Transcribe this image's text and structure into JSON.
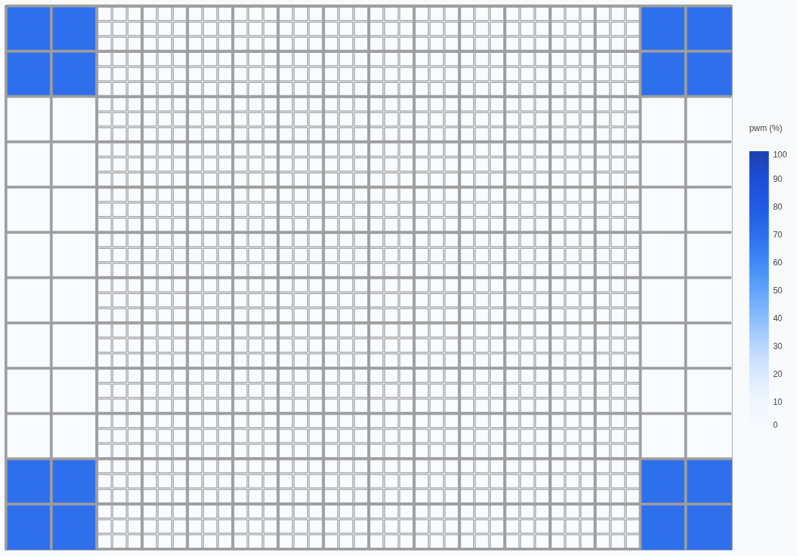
{
  "chart_data": {
    "type": "heatmap",
    "categories": [
      null,
      null,
      null,
      null,
      null,
      null,
      null,
      null,
      null,
      null,
      null,
      null,
      null,
      null,
      null,
      null,
      null,
      null,
      null,
      null,
      null,
      null,
      null,
      null,
      null,
      null,
      null,
      null,
      null,
      null,
      null,
      null,
      null,
      null,
      null,
      null,
      null,
      null,
      null,
      null,
      null,
      null,
      null,
      null,
      null,
      null,
      null,
      null
    ],
    "y_categories": [
      null,
      null,
      null,
      null,
      null,
      null,
      null,
      null,
      null,
      null,
      null,
      null,
      null,
      null,
      null,
      null,
      null,
      null,
      null,
      null,
      null,
      null,
      null,
      null,
      null,
      null,
      null,
      null,
      null,
      null,
      null,
      null,
      null,
      null,
      null,
      null
    ],
    "cells": [
      [
        70,
        70,
        70,
        70,
        70,
        70,
        0,
        0,
        0,
        0,
        0,
        0,
        0,
        0,
        0,
        0,
        0,
        0,
        0,
        0,
        0,
        0,
        0,
        0,
        0,
        0,
        0,
        0,
        0,
        0,
        0,
        0,
        0,
        0,
        0,
        0,
        0,
        0,
        0,
        0,
        0,
        0,
        70,
        70,
        70,
        70,
        70,
        70
      ],
      [
        70,
        70,
        70,
        70,
        70,
        70,
        0,
        0,
        0,
        0,
        0,
        0,
        0,
        0,
        0,
        0,
        0,
        0,
        0,
        0,
        0,
        0,
        0,
        0,
        0,
        0,
        0,
        0,
        0,
        0,
        0,
        0,
        0,
        0,
        0,
        0,
        0,
        0,
        0,
        0,
        0,
        0,
        70,
        70,
        70,
        70,
        70,
        70
      ],
      [
        70,
        70,
        70,
        70,
        70,
        70,
        0,
        0,
        0,
        0,
        0,
        0,
        0,
        0,
        0,
        0,
        0,
        0,
        0,
        0,
        0,
        0,
        0,
        0,
        0,
        0,
        0,
        0,
        0,
        0,
        0,
        0,
        0,
        0,
        0,
        0,
        0,
        0,
        0,
        0,
        0,
        0,
        70,
        70,
        70,
        70,
        70,
        70
      ],
      [
        70,
        70,
        70,
        70,
        70,
        70,
        0,
        0,
        0,
        0,
        0,
        0,
        0,
        0,
        0,
        0,
        0,
        0,
        0,
        0,
        0,
        0,
        0,
        0,
        0,
        0,
        0,
        0,
        0,
        0,
        0,
        0,
        0,
        0,
        0,
        0,
        0,
        0,
        0,
        0,
        0,
        0,
        70,
        70,
        70,
        70,
        70,
        70
      ],
      [
        70,
        70,
        70,
        70,
        70,
        70,
        0,
        0,
        0,
        0,
        0,
        0,
        0,
        0,
        0,
        0,
        0,
        0,
        0,
        0,
        0,
        0,
        0,
        0,
        0,
        0,
        0,
        0,
        0,
        0,
        0,
        0,
        0,
        0,
        0,
        0,
        0,
        0,
        0,
        0,
        0,
        0,
        70,
        70,
        70,
        70,
        70,
        70
      ],
      [
        70,
        70,
        70,
        70,
        70,
        70,
        0,
        0,
        0,
        0,
        0,
        0,
        0,
        0,
        0,
        0,
        0,
        0,
        0,
        0,
        0,
        0,
        0,
        0,
        0,
        0,
        0,
        0,
        0,
        0,
        0,
        0,
        0,
        0,
        0,
        0,
        0,
        0,
        0,
        0,
        0,
        0,
        70,
        70,
        70,
        70,
        70,
        70
      ],
      [
        0,
        0,
        0,
        0,
        0,
        0,
        0,
        0,
        0,
        0,
        0,
        0,
        0,
        0,
        0,
        0,
        0,
        0,
        0,
        0,
        0,
        0,
        0,
        0,
        0,
        0,
        0,
        0,
        0,
        0,
        0,
        0,
        0,
        0,
        0,
        0,
        0,
        0,
        0,
        0,
        0,
        0,
        0,
        0,
        0,
        0,
        0,
        0
      ],
      [
        0,
        0,
        0,
        0,
        0,
        0,
        0,
        0,
        0,
        0,
        0,
        0,
        0,
        0,
        0,
        0,
        0,
        0,
        0,
        0,
        0,
        0,
        0,
        0,
        0,
        0,
        0,
        0,
        0,
        0,
        0,
        0,
        0,
        0,
        0,
        0,
        0,
        0,
        0,
        0,
        0,
        0,
        0,
        0,
        0,
        0,
        0,
        0
      ],
      [
        0,
        0,
        0,
        0,
        0,
        0,
        0,
        0,
        0,
        0,
        0,
        0,
        0,
        0,
        0,
        0,
        0,
        0,
        0,
        0,
        0,
        0,
        0,
        0,
        0,
        0,
        0,
        0,
        0,
        0,
        0,
        0,
        0,
        0,
        0,
        0,
        0,
        0,
        0,
        0,
        0,
        0,
        0,
        0,
        0,
        0,
        0,
        0
      ],
      [
        0,
        0,
        0,
        0,
        0,
        0,
        0,
        0,
        0,
        0,
        0,
        0,
        0,
        0,
        0,
        0,
        0,
        0,
        0,
        0,
        0,
        0,
        0,
        0,
        0,
        0,
        0,
        0,
        0,
        0,
        0,
        0,
        0,
        0,
        0,
        0,
        0,
        0,
        0,
        0,
        0,
        0,
        0,
        0,
        0,
        0,
        0,
        0
      ],
      [
        0,
        0,
        0,
        0,
        0,
        0,
        0,
        0,
        0,
        0,
        0,
        0,
        0,
        0,
        0,
        0,
        0,
        0,
        0,
        0,
        0,
        0,
        0,
        0,
        0,
        0,
        0,
        0,
        0,
        0,
        0,
        0,
        0,
        0,
        0,
        0,
        0,
        0,
        0,
        0,
        0,
        0,
        0,
        0,
        0,
        0,
        0,
        0
      ],
      [
        0,
        0,
        0,
        0,
        0,
        0,
        0,
        0,
        0,
        0,
        0,
        0,
        0,
        0,
        0,
        0,
        0,
        0,
        0,
        0,
        0,
        0,
        0,
        0,
        0,
        0,
        0,
        0,
        0,
        0,
        0,
        0,
        0,
        0,
        0,
        0,
        0,
        0,
        0,
        0,
        0,
        0,
        0,
        0,
        0,
        0,
        0,
        0
      ],
      [
        0,
        0,
        0,
        0,
        0,
        0,
        0,
        0,
        0,
        0,
        0,
        0,
        0,
        0,
        0,
        0,
        0,
        0,
        0,
        0,
        0,
        0,
        0,
        0,
        0,
        0,
        0,
        0,
        0,
        0,
        0,
        0,
        0,
        0,
        0,
        0,
        0,
        0,
        0,
        0,
        0,
        0,
        0,
        0,
        0,
        0,
        0,
        0
      ],
      [
        0,
        0,
        0,
        0,
        0,
        0,
        0,
        0,
        0,
        0,
        0,
        0,
        0,
        0,
        0,
        0,
        0,
        0,
        0,
        0,
        0,
        0,
        0,
        0,
        0,
        0,
        0,
        0,
        0,
        0,
        0,
        0,
        0,
        0,
        0,
        0,
        0,
        0,
        0,
        0,
        0,
        0,
        0,
        0,
        0,
        0,
        0,
        0
      ],
      [
        0,
        0,
        0,
        0,
        0,
        0,
        0,
        0,
        0,
        0,
        0,
        0,
        0,
        0,
        0,
        0,
        0,
        0,
        0,
        0,
        0,
        0,
        0,
        0,
        0,
        0,
        0,
        0,
        0,
        0,
        0,
        0,
        0,
        0,
        0,
        0,
        0,
        0,
        0,
        0,
        0,
        0,
        0,
        0,
        0,
        0,
        0,
        0
      ],
      [
        0,
        0,
        0,
        0,
        0,
        0,
        0,
        0,
        0,
        0,
        0,
        0,
        0,
        0,
        0,
        0,
        0,
        0,
        0,
        0,
        0,
        0,
        0,
        0,
        0,
        0,
        0,
        0,
        0,
        0,
        0,
        0,
        0,
        0,
        0,
        0,
        0,
        0,
        0,
        0,
        0,
        0,
        0,
        0,
        0,
        0,
        0,
        0
      ],
      [
        0,
        0,
        0,
        0,
        0,
        0,
        0,
        0,
        0,
        0,
        0,
        0,
        0,
        0,
        0,
        0,
        0,
        0,
        0,
        0,
        0,
        0,
        0,
        0,
        0,
        0,
        0,
        0,
        0,
        0,
        0,
        0,
        0,
        0,
        0,
        0,
        0,
        0,
        0,
        0,
        0,
        0,
        0,
        0,
        0,
        0,
        0,
        0
      ],
      [
        0,
        0,
        0,
        0,
        0,
        0,
        0,
        0,
        0,
        0,
        0,
        0,
        0,
        0,
        0,
        0,
        0,
        0,
        0,
        0,
        0,
        0,
        0,
        0,
        0,
        0,
        0,
        0,
        0,
        0,
        0,
        0,
        0,
        0,
        0,
        0,
        0,
        0,
        0,
        0,
        0,
        0,
        0,
        0,
        0,
        0,
        0,
        0
      ],
      [
        0,
        0,
        0,
        0,
        0,
        0,
        0,
        0,
        0,
        0,
        0,
        0,
        0,
        0,
        0,
        0,
        0,
        0,
        0,
        0,
        0,
        0,
        0,
        0,
        0,
        0,
        0,
        0,
        0,
        0,
        0,
        0,
        0,
        0,
        0,
        0,
        0,
        0,
        0,
        0,
        0,
        0,
        0,
        0,
        0,
        0,
        0,
        0
      ],
      [
        0,
        0,
        0,
        0,
        0,
        0,
        0,
        0,
        0,
        0,
        0,
        0,
        0,
        0,
        0,
        0,
        0,
        0,
        0,
        0,
        0,
        0,
        0,
        0,
        0,
        0,
        0,
        0,
        0,
        0,
        0,
        0,
        0,
        0,
        0,
        0,
        0,
        0,
        0,
        0,
        0,
        0,
        0,
        0,
        0,
        0,
        0,
        0
      ],
      [
        0,
        0,
        0,
        0,
        0,
        0,
        0,
        0,
        0,
        0,
        0,
        0,
        0,
        0,
        0,
        0,
        0,
        0,
        0,
        0,
        0,
        0,
        0,
        0,
        0,
        0,
        0,
        0,
        0,
        0,
        0,
        0,
        0,
        0,
        0,
        0,
        0,
        0,
        0,
        0,
        0,
        0,
        0,
        0,
        0,
        0,
        0,
        0
      ],
      [
        0,
        0,
        0,
        0,
        0,
        0,
        0,
        0,
        0,
        0,
        0,
        0,
        0,
        0,
        0,
        0,
        0,
        0,
        0,
        0,
        0,
        0,
        0,
        0,
        0,
        0,
        0,
        0,
        0,
        0,
        0,
        0,
        0,
        0,
        0,
        0,
        0,
        0,
        0,
        0,
        0,
        0,
        0,
        0,
        0,
        0,
        0,
        0
      ],
      [
        0,
        0,
        0,
        0,
        0,
        0,
        0,
        0,
        0,
        0,
        0,
        0,
        0,
        0,
        0,
        0,
        0,
        0,
        0,
        0,
        0,
        0,
        0,
        0,
        0,
        0,
        0,
        0,
        0,
        0,
        0,
        0,
        0,
        0,
        0,
        0,
        0,
        0,
        0,
        0,
        0,
        0,
        0,
        0,
        0,
        0,
        0,
        0
      ],
      [
        0,
        0,
        0,
        0,
        0,
        0,
        0,
        0,
        0,
        0,
        0,
        0,
        0,
        0,
        0,
        0,
        0,
        0,
        0,
        0,
        0,
        0,
        0,
        0,
        0,
        0,
        0,
        0,
        0,
        0,
        0,
        0,
        0,
        0,
        0,
        0,
        0,
        0,
        0,
        0,
        0,
        0,
        0,
        0,
        0,
        0,
        0,
        0
      ],
      [
        0,
        0,
        0,
        0,
        0,
        0,
        0,
        0,
        0,
        0,
        0,
        0,
        0,
        0,
        0,
        0,
        0,
        0,
        0,
        0,
        0,
        0,
        0,
        0,
        0,
        0,
        0,
        0,
        0,
        0,
        0,
        0,
        0,
        0,
        0,
        0,
        0,
        0,
        0,
        0,
        0,
        0,
        0,
        0,
        0,
        0,
        0,
        0
      ],
      [
        0,
        0,
        0,
        0,
        0,
        0,
        0,
        0,
        0,
        0,
        0,
        0,
        0,
        0,
        0,
        0,
        0,
        0,
        0,
        0,
        0,
        0,
        0,
        0,
        0,
        0,
        0,
        0,
        0,
        0,
        0,
        0,
        0,
        0,
        0,
        0,
        0,
        0,
        0,
        0,
        0,
        0,
        0,
        0,
        0,
        0,
        0,
        0
      ],
      [
        0,
        0,
        0,
        0,
        0,
        0,
        0,
        0,
        0,
        0,
        0,
        0,
        0,
        0,
        0,
        0,
        0,
        0,
        0,
        0,
        0,
        0,
        0,
        0,
        0,
        0,
        0,
        0,
        0,
        0,
        0,
        0,
        0,
        0,
        0,
        0,
        0,
        0,
        0,
        0,
        0,
        0,
        0,
        0,
        0,
        0,
        0,
        0
      ],
      [
        0,
        0,
        0,
        0,
        0,
        0,
        0,
        0,
        0,
        0,
        0,
        0,
        0,
        0,
        0,
        0,
        0,
        0,
        0,
        0,
        0,
        0,
        0,
        0,
        0,
        0,
        0,
        0,
        0,
        0,
        0,
        0,
        0,
        0,
        0,
        0,
        0,
        0,
        0,
        0,
        0,
        0,
        0,
        0,
        0,
        0,
        0,
        0
      ],
      [
        0,
        0,
        0,
        0,
        0,
        0,
        0,
        0,
        0,
        0,
        0,
        0,
        0,
        0,
        0,
        0,
        0,
        0,
        0,
        0,
        0,
        0,
        0,
        0,
        0,
        0,
        0,
        0,
        0,
        0,
        0,
        0,
        0,
        0,
        0,
        0,
        0,
        0,
        0,
        0,
        0,
        0,
        0,
        0,
        0,
        0,
        0,
        0
      ],
      [
        0,
        0,
        0,
        0,
        0,
        0,
        0,
        0,
        0,
        0,
        0,
        0,
        0,
        0,
        0,
        0,
        0,
        0,
        0,
        0,
        0,
        0,
        0,
        0,
        0,
        0,
        0,
        0,
        0,
        0,
        0,
        0,
        0,
        0,
        0,
        0,
        0,
        0,
        0,
        0,
        0,
        0,
        0,
        0,
        0,
        0,
        0,
        0
      ],
      [
        70,
        70,
        70,
        70,
        70,
        70,
        0,
        0,
        0,
        0,
        0,
        0,
        0,
        0,
        0,
        0,
        0,
        0,
        0,
        0,
        0,
        0,
        0,
        0,
        0,
        0,
        0,
        0,
        0,
        0,
        0,
        0,
        0,
        0,
        0,
        0,
        0,
        0,
        0,
        0,
        0,
        0,
        70,
        70,
        70,
        70,
        70,
        70
      ],
      [
        70,
        70,
        70,
        70,
        70,
        70,
        0,
        0,
        0,
        0,
        0,
        0,
        0,
        0,
        0,
        0,
        0,
        0,
        0,
        0,
        0,
        0,
        0,
        0,
        0,
        0,
        0,
        0,
        0,
        0,
        0,
        0,
        0,
        0,
        0,
        0,
        0,
        0,
        0,
        0,
        0,
        0,
        70,
        70,
        70,
        70,
        70,
        70
      ],
      [
        70,
        70,
        70,
        70,
        70,
        70,
        0,
        0,
        0,
        0,
        0,
        0,
        0,
        0,
        0,
        0,
        0,
        0,
        0,
        0,
        0,
        0,
        0,
        0,
        0,
        0,
        0,
        0,
        0,
        0,
        0,
        0,
        0,
        0,
        0,
        0,
        0,
        0,
        0,
        0,
        0,
        0,
        70,
        70,
        70,
        70,
        70,
        70
      ],
      [
        70,
        70,
        70,
        70,
        70,
        70,
        0,
        0,
        0,
        0,
        0,
        0,
        0,
        0,
        0,
        0,
        0,
        0,
        0,
        0,
        0,
        0,
        0,
        0,
        0,
        0,
        0,
        0,
        0,
        0,
        0,
        0,
        0,
        0,
        0,
        0,
        0,
        0,
        0,
        0,
        0,
        0,
        70,
        70,
        70,
        70,
        70,
        70
      ],
      [
        70,
        70,
        70,
        70,
        70,
        70,
        0,
        0,
        0,
        0,
        0,
        0,
        0,
        0,
        0,
        0,
        0,
        0,
        0,
        0,
        0,
        0,
        0,
        0,
        0,
        0,
        0,
        0,
        0,
        0,
        0,
        0,
        0,
        0,
        0,
        0,
        0,
        0,
        0,
        0,
        0,
        0,
        70,
        70,
        70,
        70,
        70,
        70
      ],
      [
        70,
        70,
        70,
        70,
        70,
        70,
        0,
        0,
        0,
        0,
        0,
        0,
        0,
        0,
        0,
        0,
        0,
        0,
        0,
        0,
        0,
        0,
        0,
        0,
        0,
        0,
        0,
        0,
        0,
        0,
        0,
        0,
        0,
        0,
        0,
        0,
        0,
        0,
        0,
        0,
        0,
        0,
        70,
        70,
        70,
        70,
        70,
        70
      ]
    ],
    "grid": true,
    "clabel": "pwm (%)",
    "cticks": [
      0,
      10,
      20,
      30,
      40,
      50,
      60,
      70,
      80,
      90,
      100
    ]
  }
}
